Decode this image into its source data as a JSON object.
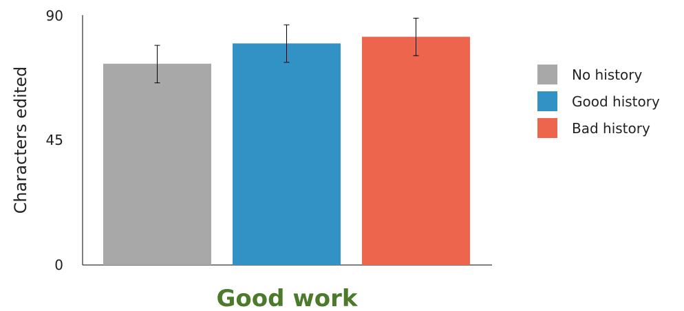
{
  "chart_data": {
    "type": "bar",
    "title": "Good work",
    "xlabel": "",
    "ylabel": "Characters edited",
    "ylim": [
      0,
      90
    ],
    "yticks": [
      "0",
      "45",
      "90"
    ],
    "grid": false,
    "legend_position": "right",
    "categories": [
      "No history",
      "Good history",
      "Bad history"
    ],
    "values": [
      72.5,
      79.8,
      82.2
    ],
    "error_low": [
      65.6,
      73.0,
      75.4
    ],
    "error_high": [
      79.1,
      86.5,
      88.9
    ],
    "series": [
      {
        "name": "No history",
        "value": 72.5
      },
      {
        "name": "Good history",
        "value": 79.8
      },
      {
        "name": "Bad history",
        "value": 82.2
      }
    ]
  },
  "colors": {
    "no_history": "#a8a8a8",
    "good_history": "#3292c5",
    "bad_history": "#ee654d",
    "title": "#4a7a2a",
    "axis": "#000000"
  },
  "legend": {
    "items": [
      {
        "label": "No history",
        "color": "#a8a8a8"
      },
      {
        "label": "Good history",
        "color": "#3292c5"
      },
      {
        "label": "Bad history",
        "color": "#ee654d"
      }
    ]
  }
}
